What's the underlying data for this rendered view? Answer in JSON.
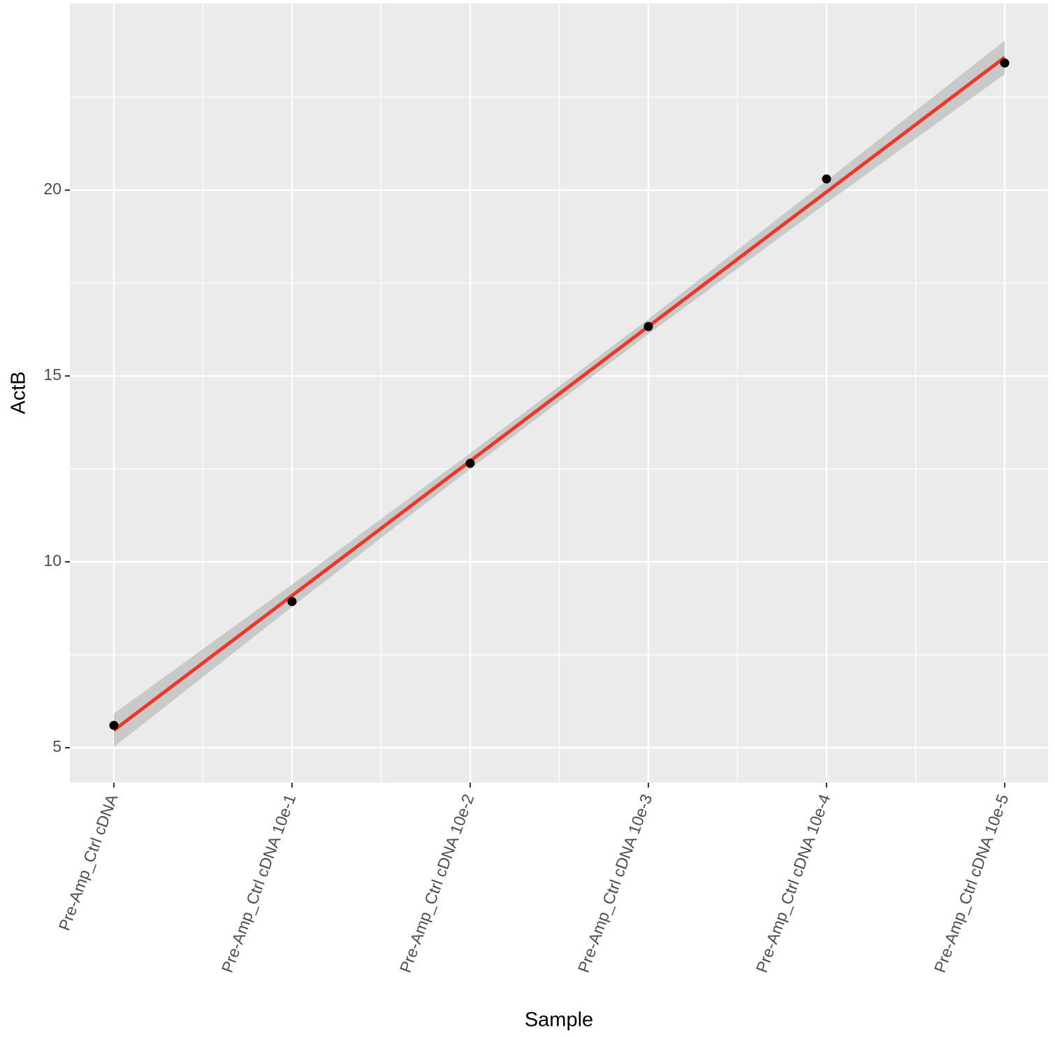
{
  "chart_data": {
    "type": "scatter",
    "x_label": "Sample",
    "y_label": "ActB",
    "categories": [
      "Pre-Amp_Ctrl cDNA",
      "Pre-Amp_Ctrl cDNA 10e-1",
      "Pre-Amp_Ctrl cDNA 10e-2",
      "Pre-Amp_Ctrl cDNA 10e-3",
      "Pre-Amp_Ctrl cDNA 10e-4",
      "Pre-Amp_Ctrl cDNA 10e-5"
    ],
    "values": [
      5.6,
      8.93,
      12.65,
      16.33,
      20.3,
      23.42
    ],
    "color": "#000000",
    "fit": {
      "values": [
        5.47,
        9.09,
        12.71,
        16.33,
        19.95,
        23.57
      ],
      "lower": [
        5.02,
        8.79,
        12.5,
        16.13,
        19.65,
        23.12
      ],
      "upper": [
        5.92,
        9.39,
        12.92,
        16.53,
        20.25,
        24.02
      ],
      "color": "#e8392a",
      "band_color": "#bdbdbd"
    },
    "ylim": [
      4.06,
      25.02
    ],
    "yticks": [
      5,
      10,
      15,
      20
    ],
    "yminor": [
      7.5,
      12.5,
      17.5,
      22.5
    ],
    "grid": true,
    "panel_color": "#ebebeb"
  }
}
